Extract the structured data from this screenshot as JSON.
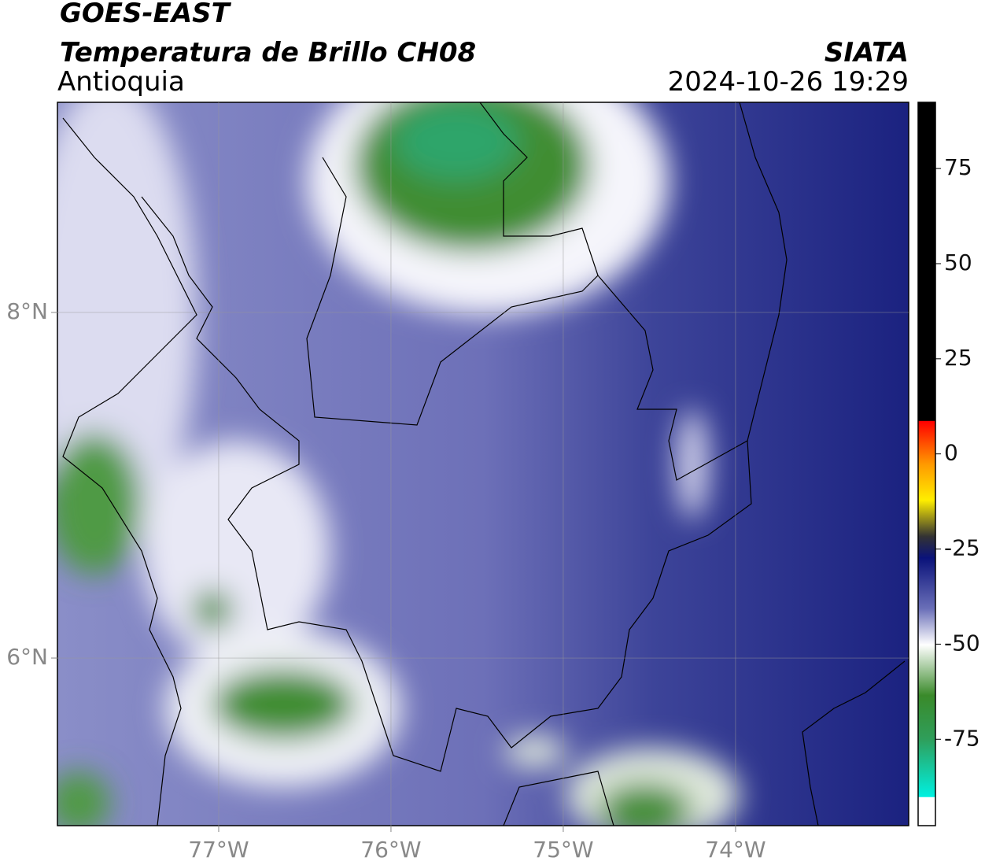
{
  "header": {
    "title": "GOES-EAST",
    "subtitle": "Temperatura de Brillo CH08",
    "region": "Antioquia",
    "source": "SIATA",
    "datetime": "2024-10-26 19:29"
  },
  "map": {
    "lonlim": [
      -77.936,
      -72.995
    ],
    "latlim": [
      5.03,
      9.216
    ],
    "lon_ticks": [
      {
        "value": -77,
        "label": "77°W"
      },
      {
        "value": -76,
        "label": "76°W"
      },
      {
        "value": -75,
        "label": "75°W"
      },
      {
        "value": -74,
        "label": "74°W"
      }
    ],
    "lat_ticks": [
      {
        "value": 8,
        "label": "8°N"
      },
      {
        "value": 6,
        "label": "6°N"
      }
    ]
  },
  "colorbar": {
    "lim": [
      -97.7,
      92.4
    ],
    "ticks": [
      75,
      50,
      25,
      0,
      -25,
      -50,
      -75
    ]
  }
}
